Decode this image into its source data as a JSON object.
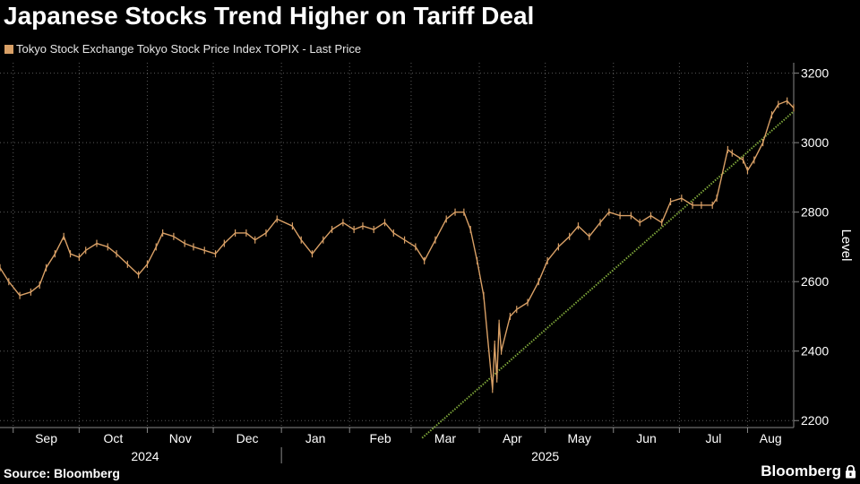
{
  "header": {
    "title": "Japanese Stocks Trend Higher on Tariff Deal",
    "legend_label": "Tokyo Stock Exchange Tokyo Stock Price Index TOPIX - Last Price"
  },
  "footer": {
    "source": "Source: Bloomberg",
    "brand": "Bloomberg"
  },
  "colors": {
    "series": "#d9a066",
    "trendline": "#7fa83a",
    "grid": "#5a5a5a",
    "background": "#000000"
  },
  "chart_data": {
    "type": "line",
    "title": "Japanese Stocks Trend Higher on Tariff Deal",
    "ylabel": "Level",
    "xlabel": "",
    "ylim": [
      2180,
      3230
    ],
    "yticks": [
      2200,
      2400,
      2600,
      2800,
      3000,
      3200
    ],
    "x_range": [
      "2024-08-26",
      "2025-08-22"
    ],
    "month_ticks": [
      {
        "label": "Sep",
        "date": "2024-09-01"
      },
      {
        "label": "Oct",
        "date": "2024-10-01"
      },
      {
        "label": "Nov",
        "date": "2024-11-01"
      },
      {
        "label": "Dec",
        "date": "2024-12-01"
      },
      {
        "label": "Jan",
        "date": "2025-01-01"
      },
      {
        "label": "Feb",
        "date": "2025-02-01"
      },
      {
        "label": "Mar",
        "date": "2025-03-01"
      },
      {
        "label": "Apr",
        "date": "2025-04-01"
      },
      {
        "label": "May",
        "date": "2025-05-01"
      },
      {
        "label": "Jun",
        "date": "2025-06-01"
      },
      {
        "label": "Jul",
        "date": "2025-07-01"
      },
      {
        "label": "Aug",
        "date": "2025-08-01"
      }
    ],
    "year_labels": [
      {
        "label": "2024",
        "center_date": "2024-10-31"
      },
      {
        "label": "2025",
        "center_date": "2025-05-01"
      }
    ],
    "year_divider_date": "2025-01-01",
    "series": [
      {
        "name": "Tokyo Stock Exchange Tokyo Stock Price Index TOPIX - Last Price",
        "points": [
          {
            "x": "2024-08-26",
            "y": 2640
          },
          {
            "x": "2024-08-30",
            "y": 2600
          },
          {
            "x": "2024-09-04",
            "y": 2560
          },
          {
            "x": "2024-09-09",
            "y": 2570
          },
          {
            "x": "2024-09-13",
            "y": 2590
          },
          {
            "x": "2024-09-16",
            "y": 2640
          },
          {
            "x": "2024-09-20",
            "y": 2680
          },
          {
            "x": "2024-09-24",
            "y": 2730
          },
          {
            "x": "2024-09-27",
            "y": 2680
          },
          {
            "x": "2024-10-01",
            "y": 2670
          },
          {
            "x": "2024-10-04",
            "y": 2690
          },
          {
            "x": "2024-10-09",
            "y": 2710
          },
          {
            "x": "2024-10-14",
            "y": 2700
          },
          {
            "x": "2024-10-18",
            "y": 2680
          },
          {
            "x": "2024-10-23",
            "y": 2650
          },
          {
            "x": "2024-10-28",
            "y": 2620
          },
          {
            "x": "2024-11-01",
            "y": 2650
          },
          {
            "x": "2024-11-05",
            "y": 2700
          },
          {
            "x": "2024-11-08",
            "y": 2740
          },
          {
            "x": "2024-11-13",
            "y": 2730
          },
          {
            "x": "2024-11-18",
            "y": 2710
          },
          {
            "x": "2024-11-22",
            "y": 2700
          },
          {
            "x": "2024-11-27",
            "y": 2690
          },
          {
            "x": "2024-12-02",
            "y": 2680
          },
          {
            "x": "2024-12-06",
            "y": 2710
          },
          {
            "x": "2024-12-11",
            "y": 2740
          },
          {
            "x": "2024-12-16",
            "y": 2740
          },
          {
            "x": "2024-12-20",
            "y": 2720
          },
          {
            "x": "2024-12-25",
            "y": 2740
          },
          {
            "x": "2024-12-30",
            "y": 2780
          },
          {
            "x": "2025-01-06",
            "y": 2760
          },
          {
            "x": "2025-01-10",
            "y": 2720
          },
          {
            "x": "2025-01-15",
            "y": 2680
          },
          {
            "x": "2025-01-20",
            "y": 2720
          },
          {
            "x": "2025-01-24",
            "y": 2750
          },
          {
            "x": "2025-01-29",
            "y": 2770
          },
          {
            "x": "2025-02-03",
            "y": 2750
          },
          {
            "x": "2025-02-07",
            "y": 2760
          },
          {
            "x": "2025-02-12",
            "y": 2750
          },
          {
            "x": "2025-02-17",
            "y": 2770
          },
          {
            "x": "2025-02-21",
            "y": 2740
          },
          {
            "x": "2025-02-26",
            "y": 2720
          },
          {
            "x": "2025-03-03",
            "y": 2700
          },
          {
            "x": "2025-03-07",
            "y": 2660
          },
          {
            "x": "2025-03-12",
            "y": 2720
          },
          {
            "x": "2025-03-17",
            "y": 2780
          },
          {
            "x": "2025-03-21",
            "y": 2800
          },
          {
            "x": "2025-03-25",
            "y": 2800
          },
          {
            "x": "2025-03-28",
            "y": 2750
          },
          {
            "x": "2025-03-31",
            "y": 2660
          },
          {
            "x": "2025-04-03",
            "y": 2560
          },
          {
            "x": "2025-04-07",
            "y": 2290
          },
          {
            "x": "2025-04-08",
            "y": 2420
          },
          {
            "x": "2025-04-09",
            "y": 2320
          },
          {
            "x": "2025-04-10",
            "y": 2480
          },
          {
            "x": "2025-04-11",
            "y": 2400
          },
          {
            "x": "2025-04-15",
            "y": 2500
          },
          {
            "x": "2025-04-18",
            "y": 2520
          },
          {
            "x": "2025-04-23",
            "y": 2540
          },
          {
            "x": "2025-04-28",
            "y": 2600
          },
          {
            "x": "2025-05-02",
            "y": 2660
          },
          {
            "x": "2025-05-07",
            "y": 2700
          },
          {
            "x": "2025-05-12",
            "y": 2730
          },
          {
            "x": "2025-05-16",
            "y": 2760
          },
          {
            "x": "2025-05-21",
            "y": 2730
          },
          {
            "x": "2025-05-26",
            "y": 2770
          },
          {
            "x": "2025-05-30",
            "y": 2800
          },
          {
            "x": "2025-06-04",
            "y": 2790
          },
          {
            "x": "2025-06-09",
            "y": 2790
          },
          {
            "x": "2025-06-13",
            "y": 2770
          },
          {
            "x": "2025-06-18",
            "y": 2790
          },
          {
            "x": "2025-06-23",
            "y": 2770
          },
          {
            "x": "2025-06-27",
            "y": 2830
          },
          {
            "x": "2025-07-02",
            "y": 2840
          },
          {
            "x": "2025-07-07",
            "y": 2820
          },
          {
            "x": "2025-07-11",
            "y": 2820
          },
          {
            "x": "2025-07-16",
            "y": 2820
          },
          {
            "x": "2025-07-18",
            "y": 2840
          },
          {
            "x": "2025-07-23",
            "y": 2980
          },
          {
            "x": "2025-07-25",
            "y": 2970
          },
          {
            "x": "2025-07-30",
            "y": 2950
          },
          {
            "x": "2025-08-01",
            "y": 2920
          },
          {
            "x": "2025-08-04",
            "y": 2950
          },
          {
            "x": "2025-08-08",
            "y": 3000
          },
          {
            "x": "2025-08-12",
            "y": 3080
          },
          {
            "x": "2025-08-15",
            "y": 3110
          },
          {
            "x": "2025-08-19",
            "y": 3120
          },
          {
            "x": "2025-08-22",
            "y": 3100
          }
        ]
      }
    ],
    "trendline": {
      "start": {
        "x": "2025-03-06",
        "y": 2150
      },
      "end": {
        "x": "2025-08-22",
        "y": 3090
      }
    }
  }
}
